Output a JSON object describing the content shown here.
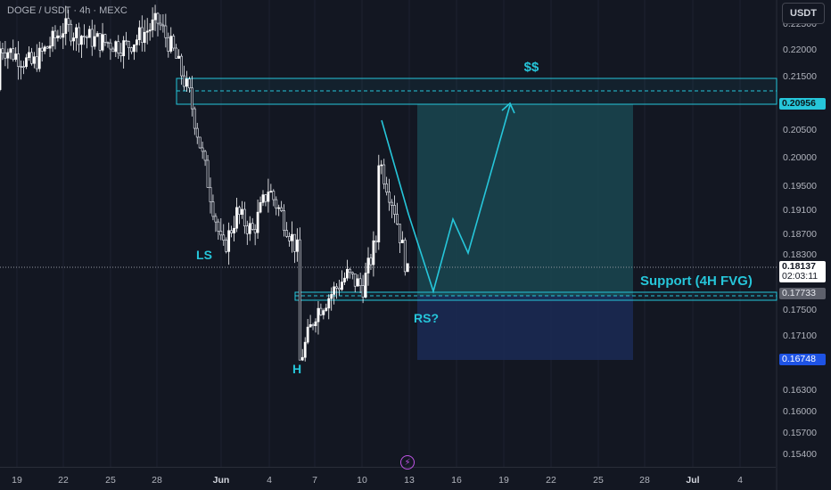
{
  "header": {
    "symbol": "DOGE / USDT · 4h · MEXC",
    "currency_button": "USDT"
  },
  "price_axis": {
    "ticks": [
      "0.22500",
      "0.22000",
      "0.21500",
      "0.20500",
      "0.20000",
      "0.19500",
      "0.19100",
      "0.18700",
      "0.18300",
      "0.17500",
      "0.17100",
      "0.16300",
      "0.16000",
      "0.15700",
      "0.15400"
    ],
    "target_price": "0.20956",
    "last_price": "0.18137",
    "countdown": "02:03:11",
    "support_price": "0.17733",
    "stop_price": "0.16748"
  },
  "time_axis": {
    "ticks": [
      "19",
      "22",
      "25",
      "28",
      "Jun",
      "4",
      "7",
      "10",
      "13",
      "16",
      "19",
      "22",
      "25",
      "28",
      "Jul",
      "4"
    ]
  },
  "annotations": {
    "target_label": "$$",
    "left_shoulder": "LS",
    "head": "H",
    "right_shoulder": "RS?",
    "support_label": "Support (4H FVG)"
  },
  "colors": {
    "background": "#131722",
    "bull_candle": "#ffffff",
    "bear_candle": "#f0f3fa",
    "accent": "#26c6da",
    "target_zone": "#1a4a54",
    "stop_zone": "#1b2a55",
    "stop_tag": "#1e53e5"
  },
  "icons": {
    "replay": "lightning-icon"
  },
  "chart_data": {
    "type": "candlestick",
    "ylim": [
      0.152,
      0.2275
    ],
    "path_keypoints": [
      [
        "May 17",
        0.213
      ],
      [
        "May 18",
        0.22
      ],
      [
        "May 20",
        0.217
      ],
      [
        "May 22",
        0.223
      ],
      [
        "May 24",
        0.221
      ],
      [
        "May 26",
        0.22
      ],
      [
        "May 28",
        0.224
      ],
      [
        "May 29",
        0.219
      ],
      [
        "May 30",
        0.212
      ],
      [
        "May 31",
        0.2
      ],
      [
        "Jun 1",
        0.188
      ],
      [
        "Jun 1",
        0.186
      ],
      [
        "Jun 2",
        0.193
      ],
      [
        "Jun 3",
        0.19
      ],
      [
        "Jun 4",
        0.197
      ],
      [
        "Jun 5",
        0.192
      ],
      [
        "Jun 6",
        0.186
      ],
      [
        "Jun 6",
        0.169
      ],
      [
        "Jun 7",
        0.177
      ],
      [
        "Jun 8",
        0.18
      ],
      [
        "Jun 9",
        0.183
      ],
      [
        "Jun 10",
        0.181
      ],
      [
        "Jun 11",
        0.19
      ],
      [
        "Jun 11",
        0.202
      ],
      [
        "Jun 12",
        0.194
      ],
      [
        "Jun 13",
        0.1813
      ]
    ],
    "projection": [
      [
        "Jun 11",
        0.206
      ],
      [
        "Jun 14",
        0.1773
      ],
      [
        "Jun 16",
        0.189
      ],
      [
        "Jun 17",
        0.184
      ],
      [
        "Jun 20",
        0.2096
      ]
    ],
    "support_zone": [
      0.1768,
      0.1776
    ],
    "target_zone": [
      0.2095,
      0.2145
    ],
    "position_tool": {
      "entry": 0.1773,
      "target": 0.20956,
      "stop": 0.16748
    }
  }
}
